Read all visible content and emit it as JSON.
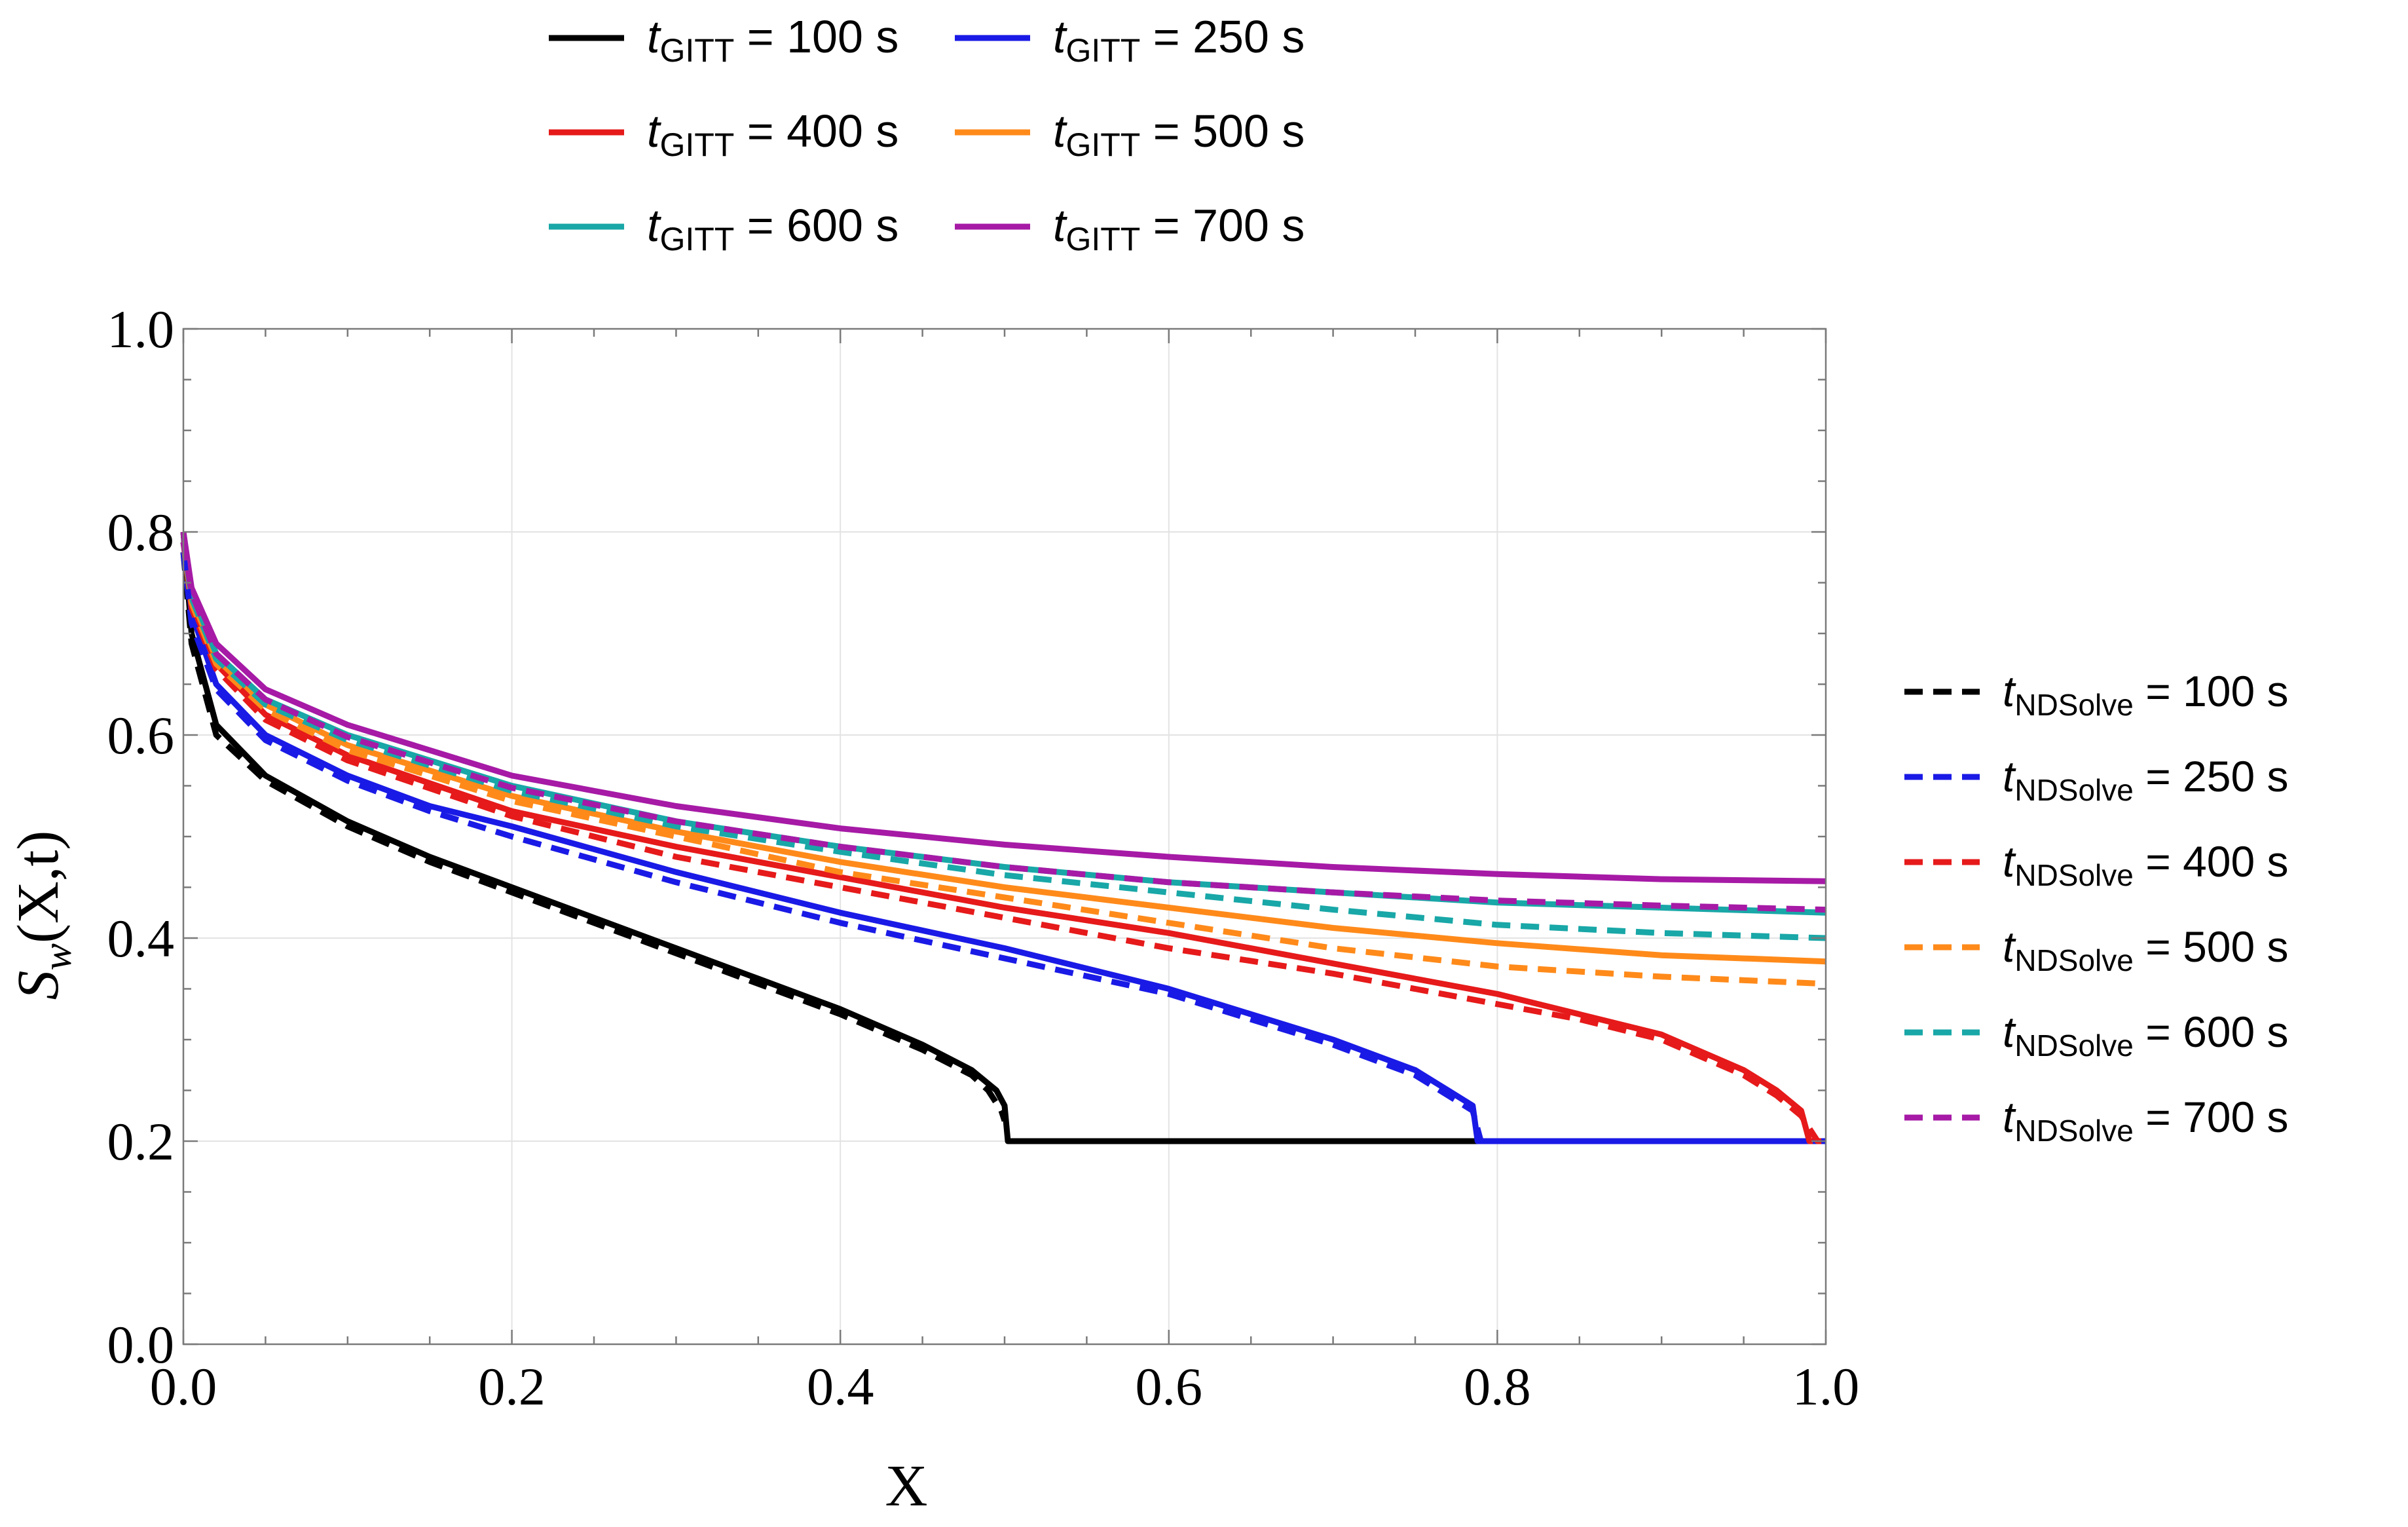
{
  "chart_data": {
    "type": "line",
    "title": "",
    "xlabel": "X",
    "ylabel_base": "S",
    "ylabel_sub": "w",
    "ylabel_rest": "(X,t)",
    "xlim": [
      0,
      1
    ],
    "ylim": [
      0,
      1
    ],
    "xticks": [
      "0.0",
      "0.2",
      "0.4",
      "0.6",
      "0.8",
      "1.0"
    ],
    "yticks": [
      "0.0",
      "0.2",
      "0.4",
      "0.6",
      "0.8",
      "1.0"
    ],
    "grid": true,
    "legend_gitt_placement": "top",
    "legend_ndsolve_placement": "right",
    "series": [
      {
        "name": "t_GITT = 100 s",
        "label_t": "t",
        "label_sub": "GITT",
        "label_rest": " = 100 s",
        "group": "gitt",
        "style": "solid",
        "color": "#000000",
        "x": [
          0.0,
          0.005,
          0.02,
          0.05,
          0.1,
          0.15,
          0.2,
          0.25,
          0.3,
          0.35,
          0.4,
          0.45,
          0.48,
          0.495,
          0.5,
          0.502,
          0.503,
          0.52,
          0.6,
          0.8,
          0.99,
          1.0
        ],
        "y": [
          0.8,
          0.7,
          0.61,
          0.56,
          0.515,
          0.48,
          0.45,
          0.42,
          0.39,
          0.36,
          0.33,
          0.295,
          0.27,
          0.25,
          0.235,
          0.2,
          0.2,
          0.2,
          0.2,
          0.2,
          0.2,
          0.2
        ]
      },
      {
        "name": "t_GITT = 250 s",
        "label_t": "t",
        "label_sub": "GITT",
        "label_rest": " = 250 s",
        "group": "gitt",
        "style": "solid",
        "color": "#1a1ae6",
        "x": [
          0.0,
          0.005,
          0.02,
          0.05,
          0.1,
          0.15,
          0.2,
          0.3,
          0.4,
          0.5,
          0.6,
          0.7,
          0.75,
          0.77,
          0.785,
          0.788,
          0.79,
          0.8,
          0.9,
          1.0
        ],
        "y": [
          0.8,
          0.72,
          0.65,
          0.6,
          0.56,
          0.53,
          0.51,
          0.465,
          0.425,
          0.39,
          0.35,
          0.3,
          0.27,
          0.25,
          0.235,
          0.2,
          0.2,
          0.2,
          0.2,
          0.2
        ]
      },
      {
        "name": "t_GITT = 400 s",
        "label_t": "t",
        "label_sub": "GITT",
        "label_rest": " = 400 s",
        "group": "gitt",
        "style": "solid",
        "color": "#e61a1a",
        "x": [
          0.0,
          0.005,
          0.02,
          0.05,
          0.1,
          0.2,
          0.3,
          0.4,
          0.5,
          0.6,
          0.7,
          0.8,
          0.85,
          0.9,
          0.95,
          0.97,
          0.985,
          0.99,
          1.0
        ],
        "y": [
          0.8,
          0.73,
          0.67,
          0.62,
          0.58,
          0.525,
          0.49,
          0.46,
          0.43,
          0.405,
          0.375,
          0.345,
          0.325,
          0.305,
          0.27,
          0.25,
          0.23,
          0.2,
          0.2
        ]
      },
      {
        "name": "t_GITT = 500 s",
        "label_t": "t",
        "label_sub": "GITT",
        "label_rest": " = 500 s",
        "group": "gitt",
        "style": "solid",
        "color": "#ff8a1a",
        "x": [
          0.0,
          0.005,
          0.02,
          0.05,
          0.1,
          0.2,
          0.3,
          0.4,
          0.5,
          0.6,
          0.7,
          0.8,
          0.9,
          1.0
        ],
        "y": [
          0.8,
          0.735,
          0.675,
          0.63,
          0.59,
          0.54,
          0.505,
          0.475,
          0.45,
          0.43,
          0.41,
          0.395,
          0.383,
          0.377
        ]
      },
      {
        "name": "t_GITT = 600 s",
        "label_t": "t",
        "label_sub": "GITT",
        "label_rest": " = 600 s",
        "group": "gitt",
        "style": "solid",
        "color": "#19a7a7",
        "x": [
          0.0,
          0.005,
          0.02,
          0.05,
          0.1,
          0.2,
          0.3,
          0.4,
          0.5,
          0.6,
          0.7,
          0.8,
          0.9,
          1.0
        ],
        "y": [
          0.8,
          0.74,
          0.68,
          0.635,
          0.6,
          0.55,
          0.515,
          0.49,
          0.47,
          0.455,
          0.445,
          0.435,
          0.43,
          0.425
        ]
      },
      {
        "name": "t_GITT = 700 s",
        "label_t": "t",
        "label_sub": "GITT",
        "label_rest": " = 700 s",
        "group": "gitt",
        "style": "solid",
        "color": "#a61aa6",
        "x": [
          0.0,
          0.005,
          0.02,
          0.05,
          0.1,
          0.2,
          0.3,
          0.4,
          0.5,
          0.6,
          0.7,
          0.8,
          0.9,
          1.0
        ],
        "y": [
          0.8,
          0.745,
          0.69,
          0.645,
          0.61,
          0.56,
          0.53,
          0.508,
          0.492,
          0.48,
          0.47,
          0.463,
          0.458,
          0.456
        ]
      },
      {
        "name": "t_NDSolve = 100 s",
        "label_t": "t",
        "label_sub": "NDSolve",
        "label_rest": " = 100 s",
        "group": "ndsolve",
        "style": "dashed",
        "color": "#000000",
        "x": [
          0.0,
          0.005,
          0.02,
          0.05,
          0.1,
          0.15,
          0.2,
          0.25,
          0.3,
          0.35,
          0.4,
          0.45,
          0.48,
          0.49,
          0.498,
          0.5
        ],
        "y": [
          0.78,
          0.69,
          0.6,
          0.555,
          0.51,
          0.475,
          0.445,
          0.415,
          0.385,
          0.355,
          0.325,
          0.29,
          0.265,
          0.25,
          0.23,
          0.22
        ]
      },
      {
        "name": "t_NDSolve = 250 s",
        "label_t": "t",
        "label_sub": "NDSolve",
        "label_rest": " = 250 s",
        "group": "ndsolve",
        "style": "dashed",
        "color": "#1a1ae6",
        "x": [
          0.0,
          0.005,
          0.02,
          0.05,
          0.1,
          0.15,
          0.2,
          0.3,
          0.4,
          0.5,
          0.6,
          0.7,
          0.75,
          0.77,
          0.785,
          0.79,
          0.8,
          0.85,
          0.9,
          1.0
        ],
        "y": [
          0.78,
          0.71,
          0.645,
          0.595,
          0.555,
          0.525,
          0.5,
          0.455,
          0.415,
          0.38,
          0.345,
          0.295,
          0.265,
          0.245,
          0.23,
          0.2,
          0.2,
          0.2,
          0.2,
          0.2
        ]
      },
      {
        "name": "t_NDSolve = 400 s",
        "label_t": "t",
        "label_sub": "NDSolve",
        "label_rest": " = 400 s",
        "group": "ndsolve",
        "style": "dashed",
        "color": "#e61a1a",
        "x": [
          0.0,
          0.005,
          0.02,
          0.05,
          0.1,
          0.2,
          0.3,
          0.4,
          0.5,
          0.6,
          0.7,
          0.8,
          0.85,
          0.9,
          0.95,
          0.97,
          0.985,
          0.995,
          1.0
        ],
        "y": [
          0.79,
          0.725,
          0.665,
          0.615,
          0.575,
          0.52,
          0.48,
          0.45,
          0.42,
          0.39,
          0.365,
          0.335,
          0.32,
          0.3,
          0.265,
          0.245,
          0.225,
          0.2,
          0.2
        ]
      },
      {
        "name": "t_NDSolve = 500 s",
        "label_t": "t",
        "label_sub": "NDSolve",
        "label_rest": " = 500 s",
        "group": "ndsolve",
        "style": "dashed",
        "color": "#ff8a1a",
        "x": [
          0.0,
          0.005,
          0.02,
          0.05,
          0.1,
          0.2,
          0.3,
          0.4,
          0.5,
          0.6,
          0.7,
          0.8,
          0.9,
          1.0
        ],
        "y": [
          0.79,
          0.73,
          0.67,
          0.625,
          0.585,
          0.535,
          0.5,
          0.465,
          0.44,
          0.415,
          0.39,
          0.372,
          0.362,
          0.355
        ]
      },
      {
        "name": "t_NDSolve = 600 s",
        "label_t": "t",
        "label_sub": "NDSolve",
        "label_rest": " = 600 s",
        "group": "ndsolve",
        "style": "dashed",
        "color": "#19a7a7",
        "x": [
          0.0,
          0.005,
          0.02,
          0.05,
          0.1,
          0.2,
          0.3,
          0.4,
          0.5,
          0.6,
          0.7,
          0.8,
          0.9,
          1.0
        ],
        "y": [
          0.79,
          0.735,
          0.675,
          0.63,
          0.595,
          0.545,
          0.51,
          0.485,
          0.462,
          0.445,
          0.428,
          0.413,
          0.405,
          0.4
        ]
      },
      {
        "name": "t_NDSolve = 700 s",
        "label_t": "t",
        "label_sub": "NDSolve",
        "label_rest": " = 700 s",
        "group": "ndsolve",
        "style": "dashed",
        "color": "#a61aa6",
        "x": [
          0.0,
          0.005,
          0.02,
          0.05,
          0.1,
          0.2,
          0.3,
          0.4,
          0.5,
          0.6,
          0.7,
          0.8,
          0.9,
          1.0
        ],
        "y": [
          0.79,
          0.74,
          0.68,
          0.635,
          0.598,
          0.548,
          0.515,
          0.49,
          0.47,
          0.455,
          0.445,
          0.437,
          0.432,
          0.428
        ]
      }
    ]
  }
}
